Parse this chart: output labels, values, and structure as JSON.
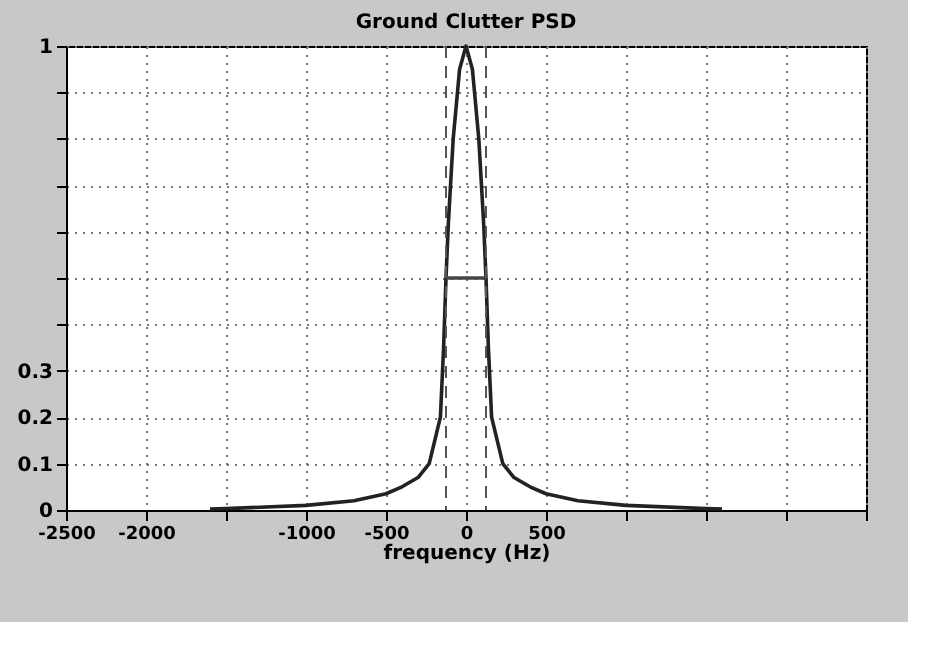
{
  "chart_data": {
    "type": "line",
    "title": "Ground Clutter PSD",
    "xlabel": "frequency (Hz)",
    "xlim": [
      -2500,
      2500
    ],
    "ylim": [
      0,
      1
    ],
    "xticks": [
      -2500,
      -2000,
      {
        "value": -1500,
        "label": null
      },
      -1000,
      -500,
      0,
      500,
      {
        "value": 1000,
        "label": null
      },
      {
        "value": 1500,
        "label": null
      },
      {
        "value": 2000,
        "label": null
      },
      {
        "value": 2500,
        "label": null
      }
    ],
    "yticks": [
      0,
      0.1,
      0.2,
      0.3,
      {
        "value": 0.4,
        "label": null
      },
      {
        "value": 0.5,
        "label": null
      },
      {
        "value": 0.6,
        "label": null
      },
      {
        "value": 0.7,
        "label": null
      },
      {
        "value": 0.8,
        "label": null
      },
      {
        "value": 0.9,
        "label": null
      },
      1
    ],
    "grid": true,
    "marker": "none",
    "series": [
      {
        "color": "#222222",
        "line_style": "solid",
        "x": [
          -1600,
          -1500,
          -1000,
          -700,
          -500,
          -400,
          -300,
          -230,
          -160,
          -140,
          -125,
          -110,
          -80,
          -40,
          0,
          40,
          80,
          110,
          125,
          140,
          160,
          230,
          300,
          400,
          500,
          700,
          1000,
          1500,
          1600
        ],
        "values": [
          0.002,
          0.003,
          0.01,
          0.02,
          0.035,
          0.05,
          0.07,
          0.1,
          0.2,
          0.35,
          0.5,
          0.62,
          0.8,
          0.95,
          1,
          0.95,
          0.8,
          0.62,
          0.5,
          0.35,
          0.2,
          0.1,
          0.07,
          0.05,
          0.035,
          0.02,
          0.01,
          0.003,
          0.002
        ]
      },
      {
        "color": "#444444",
        "line_style": "solid",
        "x": [
          -125,
          125
        ],
        "values": [
          0.5,
          0.5
        ]
      }
    ],
    "ref_lines": [
      {
        "axis": "x",
        "value": -125,
        "color": "#555555",
        "line_style": "dashed"
      },
      {
        "axis": "x",
        "value": 125,
        "color": "#555555",
        "line_style": "dashed"
      }
    ]
  }
}
